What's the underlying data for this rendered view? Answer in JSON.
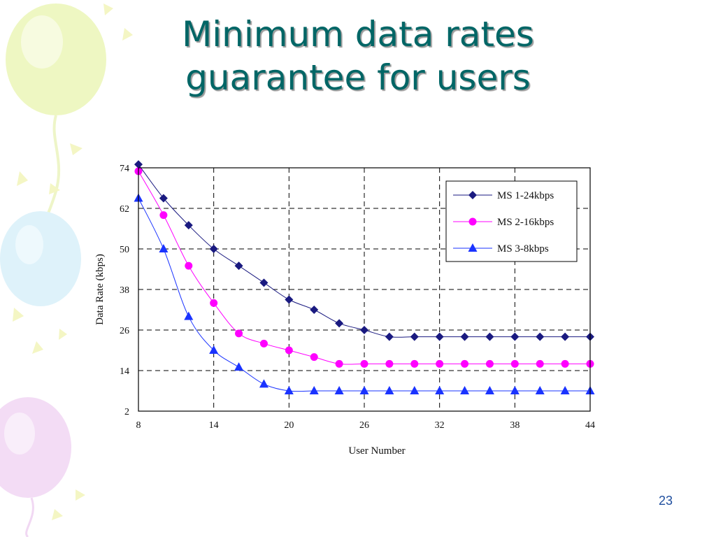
{
  "slide": {
    "title_lines": [
      "Minimum data rates",
      "guarantee for users"
    ],
    "page_number": "23"
  },
  "colors": {
    "title": "#006666",
    "series_ms1": "#1a1a80",
    "series_ms2": "#ff00ff",
    "series_ms3": "#1a33ff",
    "page_number": "#1f4e9e"
  },
  "chart_data": {
    "type": "line",
    "title": "",
    "xlabel": "User Number",
    "ylabel": "Data Rate (kbps)",
    "xlim": [
      8,
      44
    ],
    "ylim": [
      2,
      74
    ],
    "x_ticks": [
      8,
      14,
      20,
      26,
      32,
      38,
      44
    ],
    "y_ticks": [
      2,
      14,
      26,
      38,
      50,
      62,
      74
    ],
    "grid": true,
    "grid_style": "dashed",
    "legend_position": "top-right",
    "x": [
      8,
      10,
      12,
      14,
      16,
      18,
      20,
      22,
      24,
      26,
      28,
      30,
      32,
      34,
      36,
      38,
      40,
      42,
      44
    ],
    "series": [
      {
        "name": "MS 1-24kbps",
        "marker": "diamond",
        "color": "#1a1a80",
        "values": [
          75,
          65,
          57,
          50,
          45,
          40,
          35,
          32,
          28,
          26,
          24,
          24,
          24,
          24,
          24,
          24,
          24,
          24,
          24
        ]
      },
      {
        "name": "MS 2-16kbps",
        "marker": "circle",
        "color": "#ff00ff",
        "values": [
          73,
          60,
          45,
          34,
          25,
          22,
          20,
          18,
          16,
          16,
          16,
          16,
          16,
          16,
          16,
          16,
          16,
          16,
          16
        ]
      },
      {
        "name": "MS 3-8kbps",
        "marker": "triangle",
        "color": "#1a33ff",
        "values": [
          65,
          50,
          30,
          20,
          15,
          10,
          8,
          8,
          8,
          8,
          8,
          8,
          8,
          8,
          8,
          8,
          8,
          8,
          8
        ]
      }
    ]
  }
}
